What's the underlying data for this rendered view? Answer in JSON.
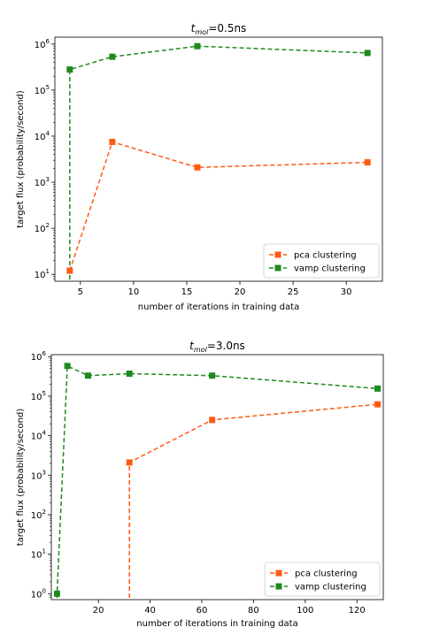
{
  "colors": {
    "pca": "#ff5a14",
    "vamp": "#1e8a1e",
    "axis": "#000000",
    "legend_border": "#cccccc"
  },
  "chart_data": [
    {
      "type": "line",
      "title": {
        "prefix": "t",
        "subscript": "mol",
        "suffix": "=0.5ns"
      },
      "xlabel": "number of iterations in training data",
      "ylabel": "target flux (probability/second)",
      "xlim": [
        2.6,
        33.4
      ],
      "ylim_log10": [
        0.85,
        6.15
      ],
      "yscale": "log",
      "xticks": [
        5,
        10,
        15,
        20,
        25,
        30
      ],
      "xtick_labels": [
        "5",
        "10",
        "15",
        "20",
        "25",
        "30"
      ],
      "yticks_exp": [
        1,
        2,
        3,
        4,
        5,
        6
      ],
      "ytick_base": "10",
      "x": [
        4,
        8,
        16,
        32
      ],
      "series": [
        {
          "name": "pca clustering",
          "key": "pca",
          "values": [
            12,
            7500,
            2100,
            2700
          ],
          "drop_to_axis": false
        },
        {
          "name": "vamp clustering",
          "key": "vamp",
          "values": [
            280000,
            530000,
            900000,
            640000
          ],
          "drop_to_axis": true
        }
      ],
      "legend": "lower-right",
      "grid": false
    },
    {
      "type": "line",
      "title": {
        "prefix": "t",
        "subscript": "mol",
        "suffix": "=3.0ns"
      },
      "xlabel": "number of iterations in training data",
      "ylabel": "target flux (probability/second)",
      "xlim": [
        1.8,
        130.2
      ],
      "ylim_log10": [
        -0.15,
        6.05
      ],
      "yscale": "log",
      "xticks": [
        20,
        40,
        60,
        80,
        100,
        120
      ],
      "xtick_labels": [
        "20",
        "40",
        "60",
        "80",
        "100",
        "120"
      ],
      "yticks_exp": [
        0,
        1,
        2,
        3,
        4,
        5,
        6
      ],
      "ytick_base": "10",
      "x": [
        4,
        8,
        16,
        32,
        64,
        128
      ],
      "series": [
        {
          "name": "pca clustering",
          "key": "pca",
          "x": [
            32,
            64,
            128
          ],
          "values": [
            2100,
            25000,
            62000
          ],
          "drop_to_axis": true
        },
        {
          "name": "vamp clustering",
          "key": "vamp",
          "x": [
            4,
            8,
            16,
            32,
            64,
            128
          ],
          "values": [
            1.0,
            580000,
            330000,
            370000,
            330000,
            155000
          ],
          "drop_to_axis": true
        }
      ],
      "legend": "lower-right",
      "grid": false
    }
  ]
}
